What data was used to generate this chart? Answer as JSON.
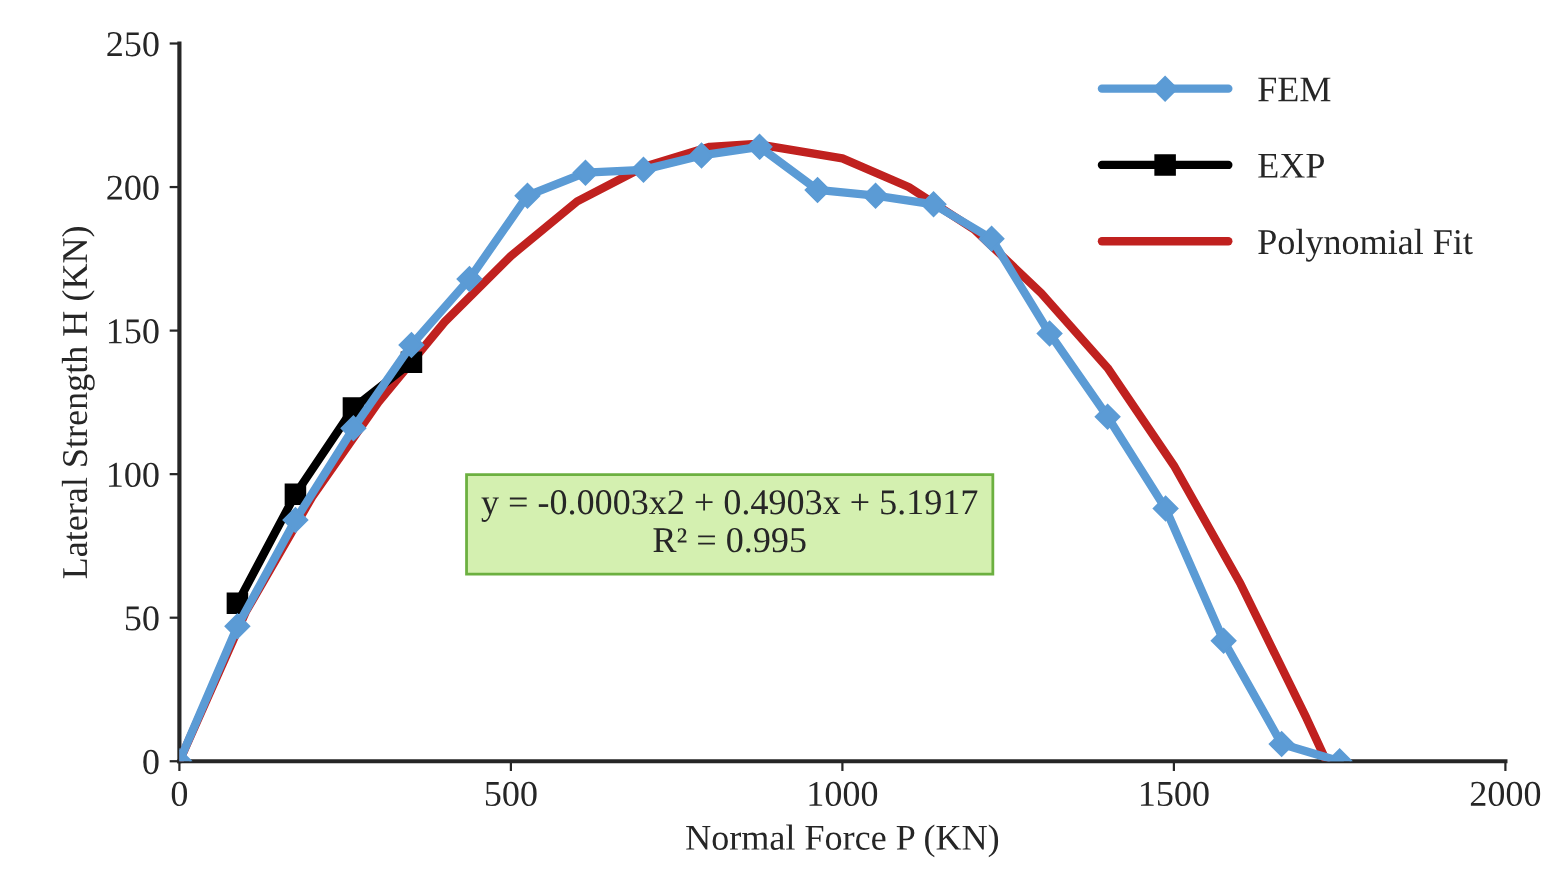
{
  "chart_data": {
    "type": "line",
    "xlabel": "Normal Force P (KN)",
    "ylabel": "Lateral Strength H (KN)",
    "xlim": [
      0,
      2000
    ],
    "xticks": [
      0,
      500,
      1000,
      1500,
      2000
    ],
    "ylim": [
      0,
      250
    ],
    "yticks": [
      0,
      50,
      100,
      150,
      200,
      250
    ],
    "grid": false,
    "legend": "top right",
    "series": [
      {
        "name": "FEM",
        "color": "#5b9bd5",
        "marker": "diamond",
        "x": [
          0,
          87.5,
          175,
          262.5,
          350,
          437.5,
          525,
          612.5,
          700,
          787.5,
          875,
          962.5,
          1050,
          1137.5,
          1225,
          1312.5,
          1400,
          1487.5,
          1575,
          1662.5,
          1750
        ],
        "values": [
          0,
          47,
          84,
          116,
          145,
          168,
          197,
          205,
          206,
          211,
          214,
          199,
          197,
          194,
          182,
          149,
          120,
          88,
          42,
          6,
          0
        ]
      },
      {
        "name": "EXP",
        "color": "#000000",
        "marker": "square",
        "x": [
          87.5,
          175,
          262.5,
          350
        ],
        "values": [
          55,
          93,
          123,
          139
        ]
      },
      {
        "name": "Polynomial Fit",
        "color": "#c0211f",
        "marker": "none",
        "x": [
          0,
          100,
          200,
          300,
          400,
          500,
          600,
          700,
          800,
          870,
          1000,
          1100,
          1200,
          1300,
          1400,
          1500,
          1600,
          1700,
          1730
        ],
        "values": [
          0,
          52,
          92,
          125,
          153,
          176,
          195,
          207,
          214,
          215,
          210,
          200,
          185,
          163,
          137,
          103,
          62,
          15,
          0
        ]
      }
    ],
    "annotations": [
      "y = -0.0003x2 + 0.4903x + 5.1917\nR² = 0.995"
    ]
  }
}
